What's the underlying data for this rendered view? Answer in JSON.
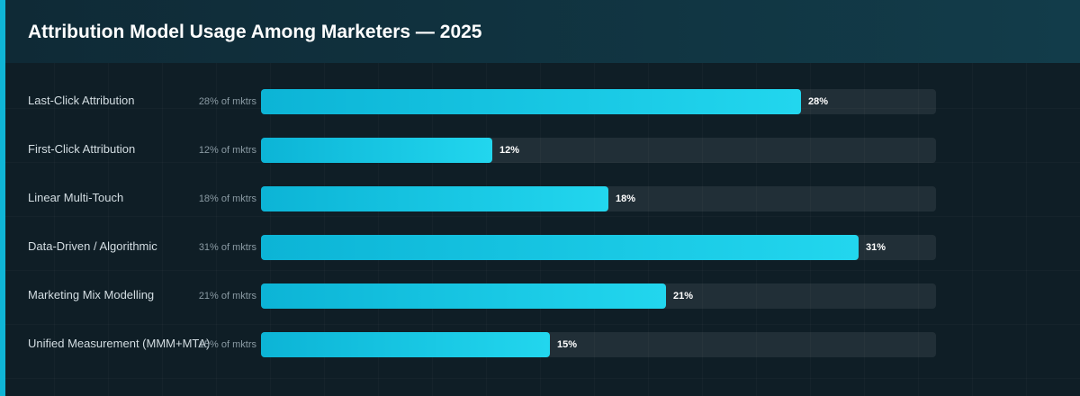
{
  "chart_data": {
    "type": "bar",
    "orientation": "horizontal",
    "title": "Attribution Model Usage Among Marketers — 2025",
    "categories": [
      "Last-Click Attribution",
      "First-Click Attribution",
      "Linear Multi-Touch",
      "Data-Driven / Algorithmic",
      "Marketing Mix Modelling",
      "Unified Measurement (MMM+MTA)"
    ],
    "values": [
      28,
      12,
      18,
      31,
      21,
      15
    ],
    "value_labels": [
      "28%",
      "12%",
      "18%",
      "31%",
      "21%",
      "15%"
    ],
    "hints": [
      "28% of mktrs",
      "12% of mktrs",
      "18% of mktrs",
      "31% of mktrs",
      "21% of mktrs",
      "15% of mktrs"
    ],
    "xlim": [
      0,
      35
    ],
    "grid": true,
    "colors": {
      "bar_start": "#0cb4d6",
      "bar_end": "#22d6ee",
      "accent": "#0fb5d6",
      "background": "#0f1e26"
    }
  }
}
